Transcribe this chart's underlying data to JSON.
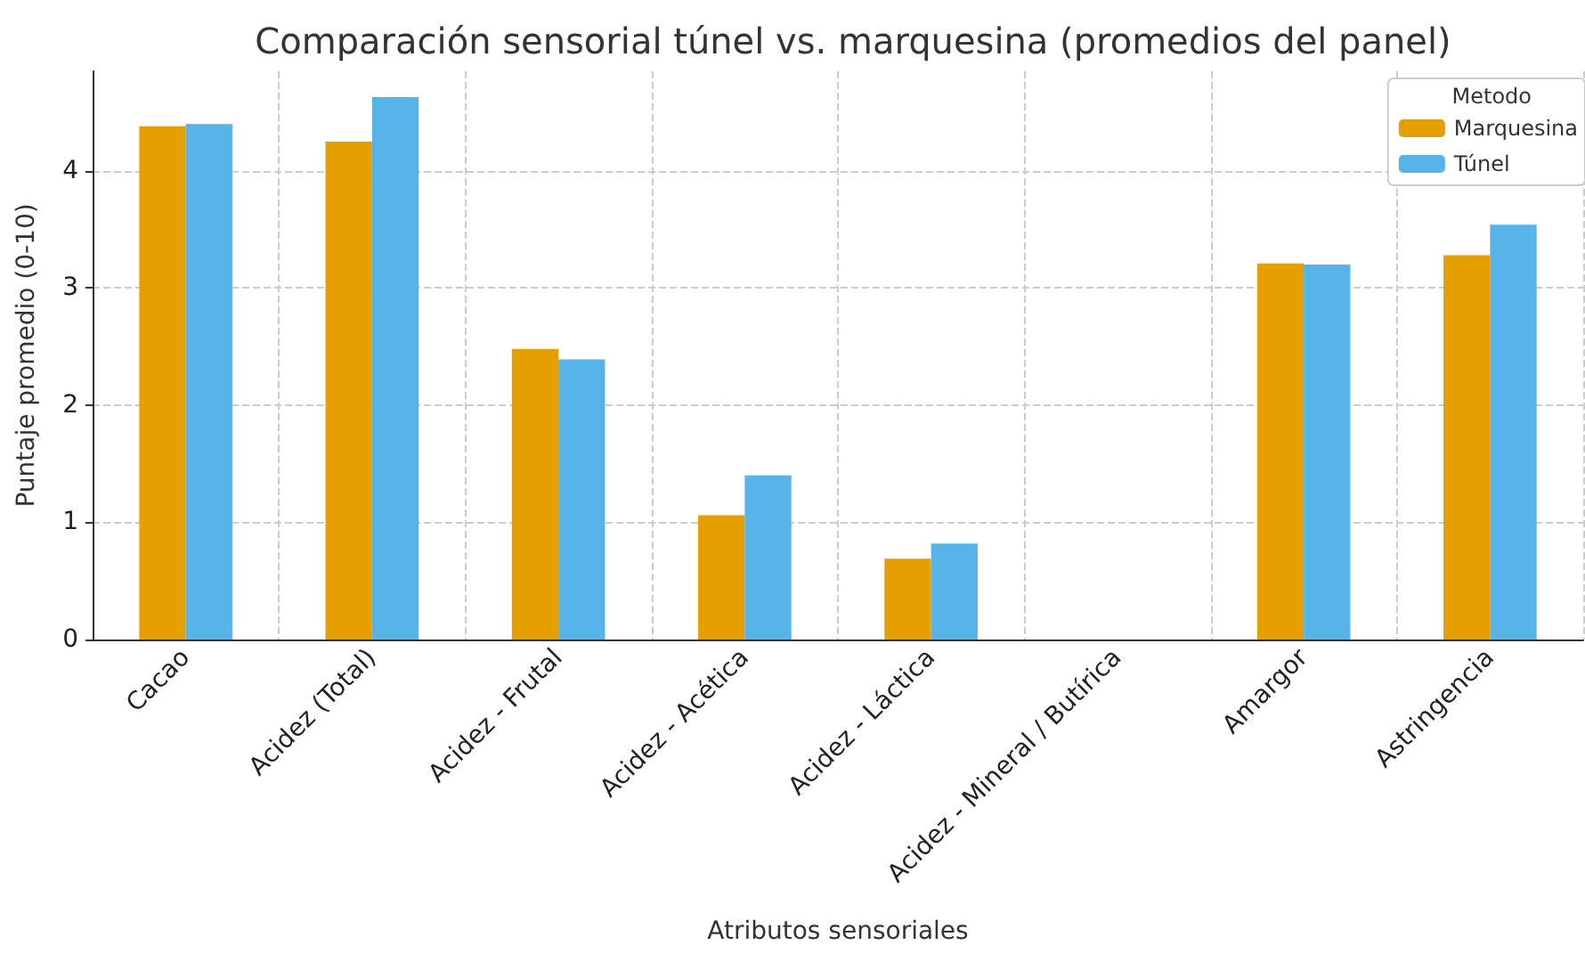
{
  "chart_data": {
    "type": "bar",
    "title": "Comparación sensorial túnel vs. marquesina (promedios del panel)",
    "xlabel": "Atributos sensoriales",
    "ylabel": "Puntaje promedio (0-10)",
    "legend_title": "Metodo",
    "categories": [
      "Cacao",
      "Acidez (Total)",
      "Acidez - Frutal",
      "Acidez - Acética",
      "Acidez - Láctica",
      "Acidez - Mineral / Butírica",
      "Amargor",
      "Astringencia"
    ],
    "series": [
      {
        "name": "Marquesina",
        "color": "#e69f00",
        "values": [
          4.38,
          4.25,
          2.48,
          1.06,
          0.69,
          0,
          3.21,
          3.28
        ]
      },
      {
        "name": "Túnel",
        "color": "#56b4e9",
        "values": [
          4.4,
          4.63,
          2.39,
          1.4,
          0.82,
          0,
          3.2,
          3.54
        ]
      }
    ],
    "ylim": [
      0,
      4.85
    ],
    "yticks": [
      0,
      1,
      2,
      3,
      4
    ],
    "grid": true,
    "legend": "top right"
  }
}
